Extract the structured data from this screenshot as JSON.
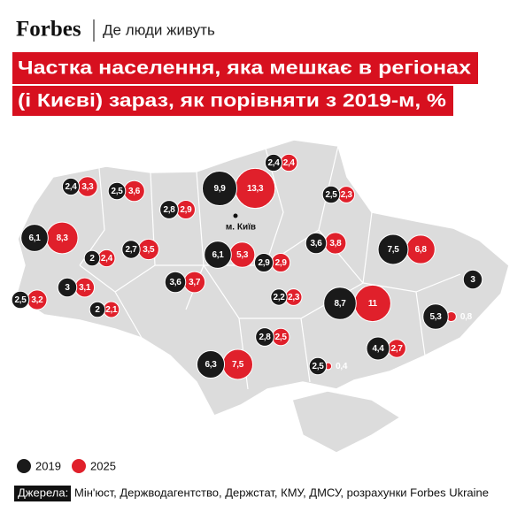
{
  "header": {
    "brand": "Forbes",
    "section": "Де люди живуть"
  },
  "title": [
    "Частка населення, яка мешкає в регіонах",
    "(і Києві) зараз, як порівняти з 2019-м, %"
  ],
  "map": {
    "city_label": "м. Київ",
    "series": [
      {
        "name": "2019",
        "color": "#1a1a1a",
        "values": [
          2.4,
          2.5,
          2.8,
          9.9,
          2.4,
          2.5,
          6.1,
          2,
          2.7,
          6.1,
          3.6,
          7.5,
          2.5,
          3,
          2,
          3.6,
          2.9,
          2.2,
          8.7,
          3,
          5.3,
          2.8,
          6.3,
          2.5,
          4.4
        ],
        "value_labels": [
          "2,4",
          "2,5",
          "2,8",
          "9,9",
          "2,4",
          "2,5",
          "6,1",
          "2",
          "2,7",
          "6,1",
          "3,6",
          "7,5",
          "2,5",
          "3",
          "2",
          "3,6",
          "2,9",
          "2,2",
          "8,7",
          "3",
          "5,3",
          "2,8",
          "6,3",
          "2,5",
          "4,4"
        ]
      },
      {
        "name": "2025",
        "color": "#e0202b",
        "values": [
          3.3,
          3.6,
          2.9,
          13.3,
          2.4,
          2.3,
          8.3,
          2.4,
          3.5,
          5.3,
          3.8,
          6.8,
          3.2,
          3.1,
          2.1,
          3.7,
          2.9,
          2.3,
          11,
          null,
          0.8,
          2.5,
          7.5,
          0.4,
          2.7
        ],
        "value_labels": [
          "3,3",
          "3,6",
          "2,9",
          "13,3",
          "2,4",
          "2,3",
          "8,3",
          "2,4",
          "3,5",
          "5,3",
          "3,8",
          "6,8",
          "3,2",
          "3,1",
          "2,1",
          "3,7",
          "2,9",
          "2,3",
          "11",
          null,
          "0,8",
          "2,5",
          "7,5",
          "0,4",
          "2,7"
        ]
      }
    ]
  },
  "sources": {
    "label": "Джерела:",
    "text": "Мін'юст, Держводагентство, Держстат, КМУ, ДМСУ, розрахунки Forbes Ukraine"
  }
}
